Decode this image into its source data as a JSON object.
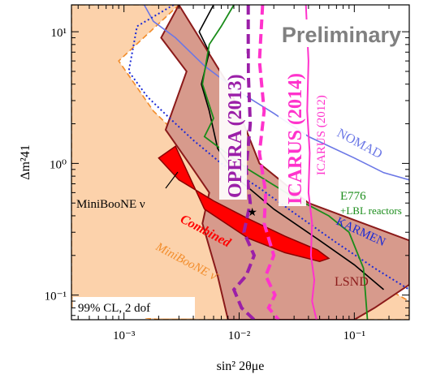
{
  "chart_data": {
    "type": "line",
    "title": "",
    "xlabel": "sin² 2θμe",
    "ylabel": "Δm²41",
    "xscale": "log",
    "yscale": "log",
    "xlim": [
      0.00035,
      0.3
    ],
    "ylim": [
      0.065,
      16
    ],
    "x_ticks": [
      {
        "value": 0.001,
        "label": "10⁻³"
      },
      {
        "value": 0.01,
        "label": "10⁻²"
      },
      {
        "value": 0.1,
        "label": "10⁻¹"
      }
    ],
    "y_ticks": [
      {
        "value": 0.1,
        "label": "10⁻¹"
      },
      {
        "value": 1,
        "label": "10⁰"
      },
      {
        "value": 10,
        "label": "10¹"
      }
    ],
    "annotations": {
      "preliminary": "Preliminary",
      "cl_note": "99% CL, 2 dof",
      "lsnd": "LSND",
      "combined": "Combined",
      "miniboone_nu": "MiniBooNE ν",
      "miniboone_nubar": "MiniBooNE ν̄",
      "opera": "OPERA (2013)",
      "icarus2014": "ICARUS (2014)",
      "icarus2012": "ICARUS (2012)",
      "nomad": "NOMAD",
      "karmen": "KARMEN",
      "e776": "E776",
      "e776_sub": "+LBL reactors"
    },
    "colors": {
      "miniboone_nubar": "#f28c2a",
      "miniboone_nubar_fill": "#fcd2ab",
      "lsnd_fill": "#d79a8c",
      "lsnd_edge": "#8b1a1a",
      "combined": "#ff0000",
      "opera": "#9b1fa8",
      "icarus": "#ff33cc",
      "nomad": "#6b77e6",
      "karmen": "#1a2ad6",
      "e776": "#1a8c1a"
    },
    "best_fit": {
      "x": 0.013,
      "y": 0.43
    },
    "series": [
      {
        "id": "miniboone_nubar_region",
        "style": "filled",
        "x": [
          0.00035,
          0.00035,
          0.003,
          0.0009,
          0.0018,
          0.006,
          0.015,
          0.035,
          0.09,
          0.3,
          0.3,
          0.05,
          0.002,
          0.00035
        ],
        "y": [
          0.2,
          16,
          16,
          6.0,
          2.5,
          0.9,
          0.5,
          0.3,
          0.16,
          0.09,
          0.065,
          0.065,
          0.065,
          0.08
        ]
      },
      {
        "id": "lsnd_region",
        "style": "filled",
        "x": [
          0.003,
          0.0021,
          0.0035,
          0.0023,
          0.004,
          0.0055,
          0.0048,
          0.0065,
          0.008,
          0.02,
          0.05,
          0.1,
          0.15,
          0.3,
          0.3,
          0.04,
          0.015,
          0.008
        ],
        "y": [
          16,
          9.0,
          5.0,
          1.8,
          0.9,
          0.6,
          0.35,
          0.14,
          0.065,
          0.065,
          0.065,
          0.065,
          0.08,
          0.12,
          0.26,
          0.5,
          1.0,
          4.0
        ]
      },
      {
        "id": "combined_region",
        "style": "filled",
        "x": [
          0.0028,
          0.002,
          0.003,
          0.006,
          0.012,
          0.025,
          0.048,
          0.06,
          0.05,
          0.025,
          0.012,
          0.005
        ],
        "y": [
          1.35,
          1.1,
          0.75,
          0.52,
          0.38,
          0.28,
          0.22,
          0.19,
          0.18,
          0.21,
          0.27,
          0.45
        ]
      },
      {
        "id": "miniboone_nu",
        "style": "solid",
        "x": [
          0.006,
          0.0045,
          0.0055,
          0.0047,
          0.0055,
          0.0065,
          0.01,
          0.02,
          0.05,
          0.1,
          0.18
        ],
        "y": [
          16,
          10,
          7.0,
          4.0,
          2.5,
          1.3,
          0.75,
          0.45,
          0.26,
          0.17,
          0.11
        ]
      },
      {
        "id": "opera_2013",
        "style": "dashed",
        "x": [
          0.012,
          0.012,
          0.0125,
          0.0115,
          0.0125,
          0.011,
          0.0135,
          0.0115,
          0.009,
          0.0105,
          0.0135
        ],
        "y": [
          16,
          5.0,
          2.0,
          0.9,
          0.5,
          0.3,
          0.2,
          0.14,
          0.11,
          0.08,
          0.065
        ]
      },
      {
        "id": "icarus_2014",
        "style": "dashed",
        "x": [
          0.016,
          0.015,
          0.0165,
          0.015,
          0.017,
          0.0165,
          0.02,
          0.017,
          0.0205,
          0.018,
          0.022
        ],
        "y": [
          16,
          6.0,
          2.5,
          1.2,
          0.6,
          0.35,
          0.2,
          0.14,
          0.1,
          0.08,
          0.065
        ]
      },
      {
        "id": "icarus_2012",
        "style": "solid",
        "x": [
          0.038,
          0.04,
          0.039,
          0.041,
          0.04,
          0.043,
          0.042,
          0.045,
          0.043,
          0.047
        ],
        "y": [
          16,
          6.0,
          2.5,
          1.2,
          0.6,
          0.35,
          0.2,
          0.13,
          0.09,
          0.065
        ]
      },
      {
        "id": "nomad",
        "style": "solid",
        "x": [
          0.0015,
          0.0018,
          0.0028,
          0.005,
          0.01,
          0.02,
          0.04,
          0.1,
          0.18,
          0.3
        ],
        "y": [
          16,
          12,
          9.0,
          5.5,
          3.5,
          2.4,
          1.6,
          1.1,
          0.85,
          0.75
        ]
      },
      {
        "id": "karmen",
        "style": "dotted",
        "x": [
          0.0027,
          0.0013,
          0.0011,
          0.0016,
          0.0025,
          0.004,
          0.007,
          0.015,
          0.03,
          0.07,
          0.15,
          0.3
        ],
        "y": [
          16,
          11,
          5.0,
          3.2,
          2.2,
          1.5,
          1.0,
          0.65,
          0.42,
          0.25,
          0.16,
          0.11
        ]
      },
      {
        "id": "e776",
        "style": "solid",
        "x": [
          0.009,
          0.007,
          0.0055,
          0.0048,
          0.006,
          0.005,
          0.012,
          0.03,
          0.06,
          0.09,
          0.12,
          0.13
        ],
        "y": [
          16,
          11,
          8.0,
          4.0,
          2.2,
          1.6,
          0.9,
          0.55,
          0.4,
          0.3,
          0.16,
          0.065
        ]
      }
    ]
  }
}
